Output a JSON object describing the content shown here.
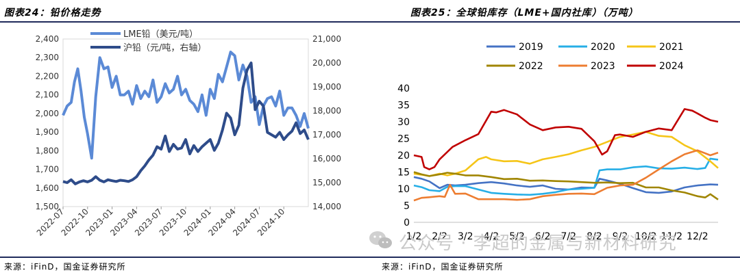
{
  "left": {
    "title": "图表24：铅价格走势",
    "source": "来源：iFinD，国金证券研究所"
  },
  "right": {
    "title": "图表25：全球铅库存（LME+国内社库）（万吨）",
    "source": "来源：iFinD，国金证券研究所"
  },
  "watermark": "公众号 · 李超的金属与新材料研究",
  "colors": {
    "rule": "#1f2a5a",
    "lme": "#5b8ad6",
    "shfe": "#2e4c8a"
  },
  "chart_data": [
    {
      "type": "line",
      "title": "铅价格走势",
      "x_ticks": [
        "2022-07",
        "2022-10",
        "2023-01",
        "2023-04",
        "2023-07",
        "2023-10",
        "2024-01",
        "2024-04",
        "2024-07",
        "2024-10"
      ],
      "x_range": [
        0,
        30
      ],
      "y_left": {
        "ticks": [
          "1,500",
          "1,600",
          "1,700",
          "1,800",
          "1,900",
          "2,000",
          "2,100",
          "2,200",
          "2,300",
          "2,400"
        ],
        "range": [
          1500,
          2400
        ]
      },
      "y_right": {
        "ticks": [
          "14,000",
          "15,000",
          "16,000",
          "17,000",
          "18,000",
          "19,000",
          "20,000",
          "21,000"
        ],
        "range": [
          14000,
          21000
        ]
      },
      "series": [
        {
          "name": "LME铅（美元/吨）",
          "axis": "left",
          "color": "#5b8ad6",
          "x": [
            0,
            0.5,
            1,
            1.4,
            1.8,
            2.2,
            2.6,
            3,
            3.5,
            4,
            4.5,
            5,
            5.5,
            6,
            6.5,
            7,
            7.5,
            8,
            8.5,
            9,
            9.5,
            10,
            10.5,
            11,
            11.5,
            12,
            12.5,
            13,
            13.5,
            14,
            14.5,
            15,
            15.5,
            16,
            16.5,
            17,
            17.5,
            18,
            18.5,
            19,
            19.5,
            20,
            20.5,
            21,
            21.5,
            22,
            22.5,
            23,
            23.5,
            24,
            24.5,
            25,
            25.5,
            26,
            26.5,
            27,
            27.5,
            28,
            28.5,
            29,
            29.5,
            30
          ],
          "y": [
            1990,
            2040,
            2060,
            2170,
            2240,
            2120,
            1980,
            1890,
            1760,
            2090,
            2300,
            2240,
            2250,
            2140,
            2200,
            2100,
            2100,
            2120,
            2050,
            2150,
            2080,
            2120,
            2090,
            2180,
            2060,
            2090,
            2160,
            2110,
            2130,
            2200,
            2100,
            2130,
            2070,
            2050,
            2010,
            2100,
            1990,
            2130,
            2080,
            2210,
            2170,
            2250,
            2330,
            2310,
            2180,
            2260,
            2200,
            2060,
            2090,
            1940,
            2040,
            2080,
            2090,
            2040,
            2120,
            1990,
            2030,
            2030,
            1990,
            1930,
            2000,
            1920
          ]
        },
        {
          "name": "沪铅（元/吨，右轴）",
          "axis": "right",
          "color": "#2e4c8a",
          "x": [
            0,
            0.5,
            1,
            1.5,
            2,
            2.5,
            3,
            3.5,
            4,
            4.5,
            5,
            5.5,
            6,
            6.5,
            7,
            7.5,
            8,
            8.5,
            9,
            9.5,
            10,
            10.5,
            11,
            11.5,
            12,
            12.5,
            13,
            13.5,
            14,
            14.5,
            15,
            15.5,
            16,
            16.5,
            17,
            17.5,
            18,
            18.5,
            19,
            19.5,
            20,
            20.5,
            21,
            21.5,
            22,
            22.5,
            23,
            23.5,
            24,
            24.5,
            25,
            25.5,
            26,
            26.5,
            27,
            27.5,
            28,
            28.5,
            29,
            29.5,
            30
          ],
          "y": [
            15050,
            15000,
            15120,
            14950,
            15030,
            15080,
            15030,
            15100,
            15250,
            15100,
            15030,
            15120,
            15080,
            15050,
            15100,
            15080,
            15050,
            15120,
            15250,
            15500,
            15700,
            15950,
            16150,
            16500,
            16400,
            16950,
            16300,
            16600,
            16400,
            16450,
            16800,
            16200,
            16550,
            16300,
            16500,
            16650,
            16800,
            16350,
            16650,
            17200,
            17900,
            17700,
            17000,
            17400,
            18950,
            19700,
            20000,
            18050,
            18400,
            18200,
            17100,
            17000,
            16900,
            17100,
            16800,
            17000,
            17150,
            17500,
            17050,
            17200,
            16800
          ]
        }
      ]
    },
    {
      "type": "line",
      "title": "全球铅库存（LME+国内社库）（万吨）",
      "categories": [
        "1/2",
        "2/2",
        "3/2",
        "4/2",
        "5/2",
        "6/2",
        "7/2",
        "8/2",
        "9/2",
        "10/2",
        "11/2",
        "12/2"
      ],
      "x_range": [
        0,
        11.8
      ],
      "ylim": [
        0,
        40
      ],
      "y_ticks": [
        0,
        5,
        10,
        15,
        20,
        25,
        30,
        35,
        40
      ],
      "series": [
        {
          "name": "2019",
          "color": "#4472c4",
          "x": [
            0,
            0.3,
            0.6,
            1,
            1.3,
            1.6,
            2,
            2.5,
            3,
            3.5,
            4,
            4.5,
            5,
            5.5,
            6,
            6.5,
            7,
            7.2,
            7.5,
            8,
            8.5,
            9,
            9.5,
            10,
            10.5,
            11,
            11.5,
            11.8
          ],
          "y": [
            13.5,
            13,
            12.2,
            10.2,
            11.2,
            11,
            11.2,
            11.7,
            12,
            11.6,
            11,
            10.6,
            11,
            10,
            9.8,
            10.4,
            10.3,
            13,
            12.5,
            11.5,
            10.2,
            9,
            8.8,
            9.2,
            10.4,
            11,
            11.3,
            11.2
          ]
        },
        {
          "name": "2020",
          "color": "#26aee6",
          "x": [
            0,
            0.3,
            0.6,
            1,
            1.3,
            1.6,
            2,
            2.5,
            3,
            3.5,
            4,
            4.5,
            5,
            5.5,
            6,
            6.5,
            7,
            7.2,
            7.5,
            8,
            8.5,
            9,
            9.5,
            10,
            10.5,
            11,
            11.3,
            11.5,
            11.8
          ],
          "y": [
            11,
            10.5,
            9.6,
            9.3,
            10.6,
            10.8,
            10.8,
            9.8,
            8.8,
            8.5,
            8.3,
            8.2,
            8.5,
            9,
            9.8,
            10,
            10.3,
            15.5,
            15.8,
            15.8,
            16.4,
            16.7,
            16.1,
            16,
            16.3,
            15.9,
            16.2,
            19,
            18.7
          ]
        },
        {
          "name": "2021",
          "color": "#f5c518",
          "x": [
            0,
            0.3,
            0.6,
            1,
            1.3,
            1.6,
            2,
            2.5,
            2.8,
            3,
            3.5,
            4,
            4.5,
            5,
            5.5,
            6,
            6.5,
            7,
            7.5,
            8,
            8.5,
            9,
            9.5,
            10,
            10.5,
            11,
            11.5,
            11.8
          ],
          "y": [
            14.5,
            14.2,
            13.8,
            14.5,
            14,
            14.5,
            15.5,
            18.8,
            19.5,
            18.8,
            18.2,
            18.3,
            17.5,
            18.8,
            19.5,
            20.3,
            21.5,
            22.5,
            24,
            25.5,
            26.2,
            27,
            25.8,
            25.5,
            23,
            21.2,
            18.2,
            16.2
          ]
        },
        {
          "name": "2022",
          "color": "#a08500",
          "x": [
            0,
            0.3,
            0.6,
            1,
            1.3,
            1.6,
            2,
            2.5,
            3,
            3.5,
            4,
            4.5,
            5,
            5.5,
            6,
            6.5,
            7,
            7.5,
            8,
            8.5,
            9,
            9.5,
            10,
            10.5,
            11,
            11.3,
            11.5,
            11.8
          ],
          "y": [
            15,
            14.3,
            13.8,
            14.3,
            14.8,
            14.5,
            14,
            14,
            13.5,
            12.9,
            13,
            12.4,
            12.5,
            12.3,
            12.2,
            12,
            11.8,
            11.9,
            11.7,
            11.8,
            10.4,
            10.4,
            9.5,
            8.9,
            7.8,
            7.4,
            8.4,
            6.8
          ]
        },
        {
          "name": "2023",
          "color": "#ed7d31",
          "x": [
            0,
            0.3,
            0.6,
            1,
            1.2,
            1.4,
            1.6,
            2,
            2.5,
            3,
            3.5,
            4,
            4.5,
            5,
            5.5,
            6,
            6.5,
            7,
            7.5,
            8,
            8.5,
            9,
            9.5,
            10,
            10.5,
            11,
            11.5,
            11.8
          ],
          "y": [
            6.5,
            7.3,
            7.5,
            7.8,
            7.6,
            11.2,
            8.5,
            8.6,
            6.9,
            6.9,
            6.9,
            6.7,
            6.9,
            7.8,
            8.2,
            8.5,
            8.6,
            8.4,
            10.3,
            11,
            11.2,
            13.3,
            15.8,
            18.2,
            20.3,
            21.5,
            20,
            20.8
          ]
        },
        {
          "name": "2024",
          "color": "#c00000",
          "x": [
            0,
            0.3,
            0.4,
            0.6,
            0.8,
            1,
            1.5,
            2,
            2.5,
            3,
            3.2,
            3.5,
            4,
            4.5,
            5,
            5.5,
            6,
            6.5,
            7,
            7.3,
            7.5,
            7.8,
            8,
            8.5,
            9,
            9.5,
            10,
            10.5,
            10.8,
            11,
            11.3,
            11.5,
            11.8
          ],
          "y": [
            20,
            19.5,
            16.5,
            15.8,
            16.5,
            18.8,
            22.5,
            24.5,
            26.3,
            33,
            32.8,
            33.5,
            32.2,
            29.2,
            27.5,
            28.3,
            28.5,
            27.9,
            24.2,
            20.2,
            21.2,
            26,
            26.2,
            25.5,
            27,
            28,
            27.5,
            33.8,
            33.3,
            32.5,
            31.2,
            30.5,
            30
          ]
        }
      ]
    }
  ]
}
